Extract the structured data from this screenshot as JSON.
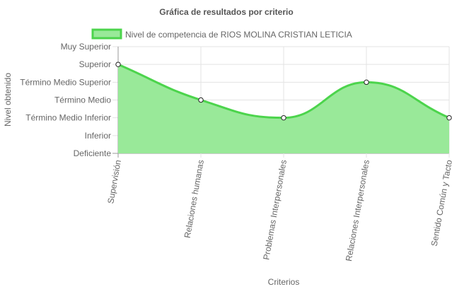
{
  "chart_data": {
    "type": "area",
    "title": "Gráfica de resultados por criterio",
    "xlabel": "Criterios",
    "ylabel": "Nivel obtenido",
    "categories": [
      "Supervisión",
      "Relaciones humanas",
      "Problemas Interpersonales",
      "Relaciones Interpersonales",
      "Sentido Común y Tacto"
    ],
    "y_levels": [
      "Deficiente",
      "Inferior",
      "Término Medio Inferior",
      "Término Medio",
      "Término Medio Superior",
      "Superior",
      "Muy Superior"
    ],
    "ylim": [
      0,
      6
    ],
    "series": [
      {
        "name": "Nivel de competencia de RIOS MOLINA CRISTIAN LETICIA",
        "values": [
          5,
          3,
          2,
          4,
          2
        ],
        "labels": [
          "Superior",
          "Término Medio",
          "Término Medio Inferior",
          "Término Medio Superior",
          "Término Medio Inferior"
        ]
      }
    ],
    "grid": true,
    "legend_position": "top",
    "colors": {
      "line": "#4cd44c",
      "fill": "#99e999",
      "point_fill": "#ffffff",
      "point_stroke": "#222222",
      "grid": "#e3e3e3",
      "axis": "#9a9a9a",
      "text": "#666666",
      "title": "#555555"
    }
  }
}
